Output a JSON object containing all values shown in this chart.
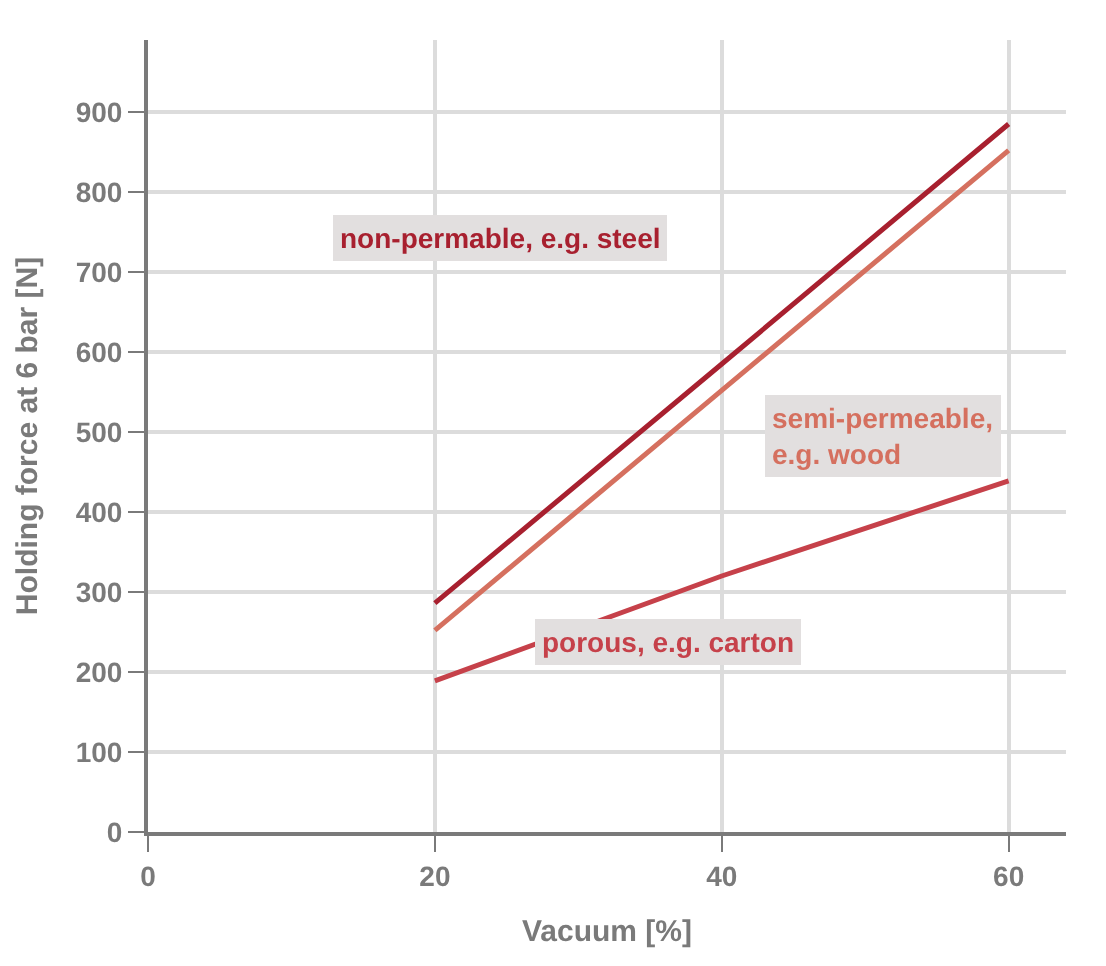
{
  "chart_data": {
    "type": "line",
    "xlabel": "Vacuum [%]",
    "ylabel": "Holding force at 6 bar [N]",
    "x": [
      20,
      40,
      60
    ],
    "series": [
      {
        "name": "non-permable, e.g. steel",
        "color": "#a8202f",
        "values": [
          286,
          585,
          885
        ]
      },
      {
        "name": "semi-permeable,\ne.g. wood",
        "color": "#d5705f",
        "values": [
          252,
          552,
          852
        ]
      },
      {
        "name": "porous, e.g. carton",
        "color": "#c6414a",
        "values": [
          189,
          320,
          439
        ]
      }
    ],
    "xlim": [
      0,
      64
    ],
    "ylim": [
      0,
      990
    ],
    "xticks": [
      0,
      20,
      40,
      60
    ],
    "yticks": [
      0,
      100,
      200,
      300,
      400,
      500,
      600,
      700,
      800,
      900
    ],
    "grid": true,
    "legend": false,
    "marker": "none",
    "line_style": "solid"
  }
}
